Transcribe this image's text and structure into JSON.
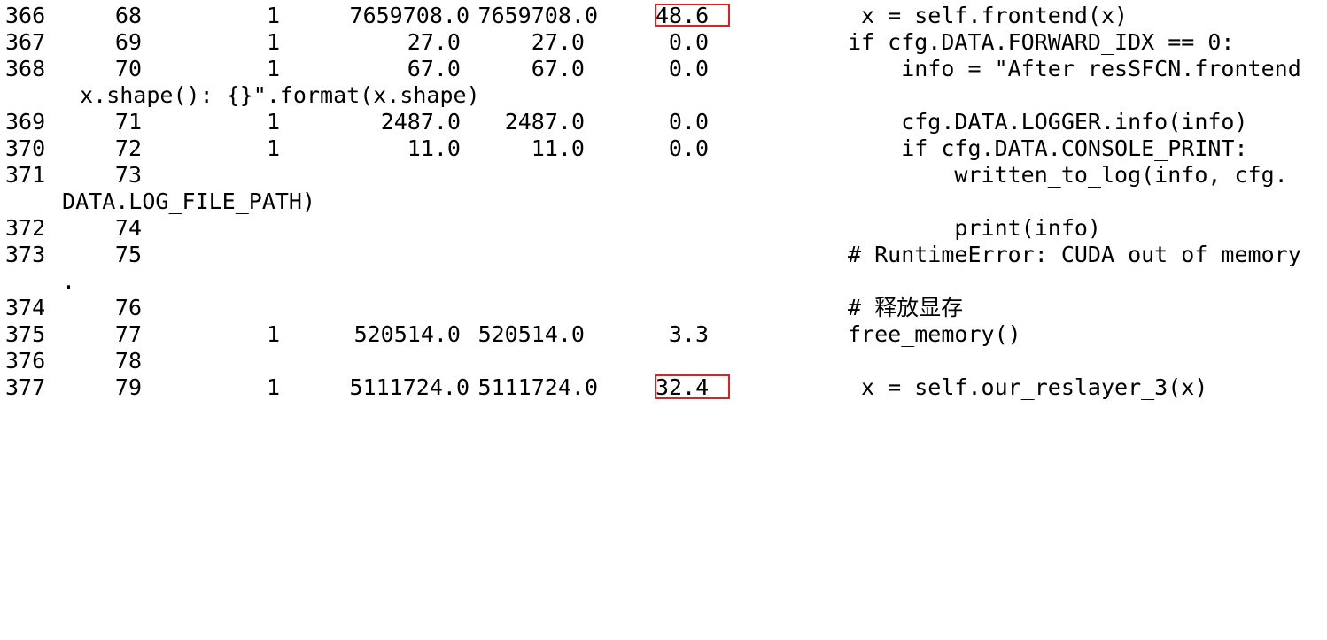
{
  "profiler_rows": [
    {
      "line": "366",
      "hits_no": "68",
      "hits": "1",
      "time": "7659708.0",
      "per_hit": "7659708.0",
      "pct": "48.6",
      "code": " x = self.frontend(x)",
      "highlight": true
    },
    {
      "line": "367",
      "hits_no": "69",
      "hits": "1",
      "time": "27.0",
      "per_hit": "27.0",
      "pct": "0.0",
      "code": "if cfg.DATA.FORWARD_IDX == 0:"
    },
    {
      "line": "368",
      "hits_no": "70",
      "hits": "1",
      "time": "67.0",
      "per_hit": "67.0",
      "pct": "0.0",
      "code": "    info = \"After resSFCN.frontend"
    },
    {
      "wrap": "  x.shape(): {}\".format(x.shape)"
    },
    {
      "line": "369",
      "hits_no": "71",
      "hits": "1",
      "time": "2487.0",
      "per_hit": "2487.0",
      "pct": "0.0",
      "code": "    cfg.DATA.LOGGER.info(info)"
    },
    {
      "line": "370",
      "hits_no": "72",
      "hits": "1",
      "time": "11.0",
      "per_hit": "11.0",
      "pct": "0.0",
      "code": "    if cfg.DATA.CONSOLE_PRINT:"
    },
    {
      "line": "371",
      "hits_no": "73",
      "code": "        written_to_log(info, cfg."
    },
    {
      "wrap": " DATA.LOG_FILE_PATH)"
    },
    {
      "line": "372",
      "hits_no": "74",
      "code": "        print(info)"
    },
    {
      "line": "373",
      "hits_no": "75",
      "code": "# RuntimeError: CUDA out of memory"
    },
    {
      "wrap": "."
    },
    {
      "line": "374",
      "hits_no": "76",
      "code": "# 释放显存"
    },
    {
      "line": "375",
      "hits_no": "77",
      "hits": "1",
      "time": "520514.0",
      "per_hit": "520514.0",
      "pct": "3.3",
      "code": "free_memory()"
    },
    {
      "line": "376",
      "hits_no": "78"
    },
    {
      "line": "377",
      "hits_no": "79",
      "hits": "1",
      "time": "5111724.0",
      "per_hit": "5111724.0",
      "pct": "32.4",
      "code": " x = self.our_reslayer_3(x)",
      "highlight": true
    }
  ],
  "colors": {
    "text": "#000000",
    "background": "#ffffff",
    "highlight_box": "#e02020"
  }
}
